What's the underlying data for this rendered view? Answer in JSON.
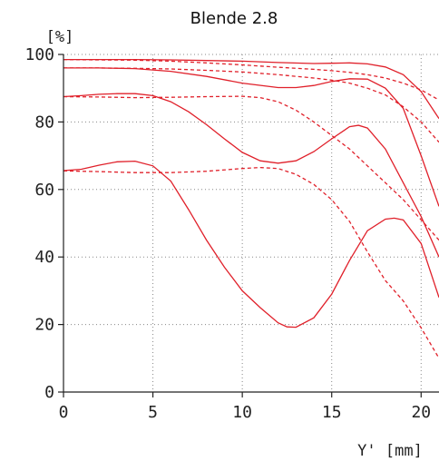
{
  "chart_data": {
    "type": "line",
    "title": "Blende 2.8",
    "ylabel": "[%]",
    "xlabel": "Y' [mm]",
    "xlim": [
      0,
      21
    ],
    "ylim": [
      0,
      100
    ],
    "xticks": [
      0,
      5,
      10,
      15,
      20
    ],
    "yticks": [
      0,
      20,
      40,
      60,
      80,
      100
    ],
    "grid": true,
    "color": "#e0202a",
    "series": [
      {
        "style": "solid",
        "x": [
          0,
          2,
          4,
          6,
          8,
          10,
          12,
          14,
          15,
          16,
          17,
          18,
          19,
          20,
          21
        ],
        "y": [
          98.5,
          98.5,
          98.5,
          98.4,
          98.2,
          98.0,
          97.6,
          97.3,
          97.4,
          97.5,
          97.2,
          96.3,
          94.0,
          89.0,
          81.0
        ]
      },
      {
        "style": "dashed",
        "x": [
          0,
          2,
          4,
          6,
          8,
          10,
          12,
          14,
          15,
          16,
          17,
          18,
          19,
          20,
          21
        ],
        "y": [
          98.5,
          98.4,
          98.3,
          98.0,
          97.5,
          96.9,
          96.2,
          95.6,
          95.2,
          94.7,
          94.0,
          93.0,
          91.5,
          89.5,
          86.5
        ]
      },
      {
        "style": "solid",
        "x": [
          0,
          2,
          4,
          6,
          8,
          10,
          12,
          13,
          14,
          15,
          16,
          17,
          18,
          19,
          20,
          21
        ],
        "y": [
          96.0,
          96.0,
          95.8,
          95.0,
          93.5,
          91.5,
          90.2,
          90.2,
          90.8,
          92.0,
          92.8,
          92.7,
          90.0,
          84.0,
          70.0,
          55.0
        ]
      },
      {
        "style": "dashed",
        "x": [
          0,
          2,
          4,
          6,
          8,
          10,
          12,
          14,
          15,
          16,
          17,
          18,
          19,
          20,
          21
        ],
        "y": [
          96.0,
          96.0,
          95.9,
          95.7,
          95.3,
          94.8,
          94.0,
          93.0,
          92.4,
          91.5,
          90.0,
          88.0,
          84.5,
          80.0,
          74.0
        ]
      },
      {
        "style": "solid",
        "x": [
          0,
          1,
          2,
          3,
          4,
          5,
          6,
          7,
          8,
          9,
          10,
          11,
          12,
          13,
          14,
          15,
          16,
          16.5,
          17,
          18,
          19,
          20,
          21
        ],
        "y": [
          87.5,
          87.8,
          88.2,
          88.4,
          88.4,
          87.8,
          86.0,
          83.0,
          79.2,
          75.0,
          71.0,
          68.5,
          67.8,
          68.5,
          71.2,
          75.0,
          78.6,
          79.0,
          78.2,
          72.0,
          62.0,
          52.0,
          40.0
        ]
      },
      {
        "style": "dashed",
        "x": [
          0,
          2,
          4,
          6,
          8,
          10,
          11,
          12,
          13,
          14,
          15,
          16,
          17,
          18,
          19,
          20,
          21
        ],
        "y": [
          87.5,
          87.4,
          87.2,
          87.3,
          87.5,
          87.6,
          87.2,
          86.0,
          83.5,
          80.0,
          76.0,
          72.0,
          67.0,
          62.0,
          57.0,
          51.0,
          45.0
        ]
      },
      {
        "style": "solid",
        "x": [
          0,
          1,
          2,
          3,
          4,
          5,
          6,
          7,
          8,
          9,
          10,
          11,
          12,
          12.5,
          13,
          14,
          15,
          16,
          17,
          18,
          18.5,
          19,
          20,
          21
        ],
        "y": [
          65.6,
          66.0,
          67.2,
          68.2,
          68.4,
          67.0,
          62.5,
          54.0,
          45.0,
          37.0,
          30.0,
          25.0,
          20.5,
          19.3,
          19.2,
          22.0,
          29.0,
          39.0,
          47.8,
          51.2,
          51.5,
          51.0,
          44.0,
          28.0
        ]
      },
      {
        "style": "dashed",
        "x": [
          0,
          2,
          4,
          6,
          8,
          10,
          11,
          12,
          13,
          14,
          15,
          16,
          17,
          18,
          19,
          20,
          21
        ],
        "y": [
          65.5,
          65.3,
          65.0,
          65.0,
          65.4,
          66.2,
          66.5,
          66.2,
          64.5,
          61.5,
          57.0,
          50.5,
          41.5,
          33.0,
          27.0,
          19.0,
          10.0
        ]
      }
    ]
  }
}
